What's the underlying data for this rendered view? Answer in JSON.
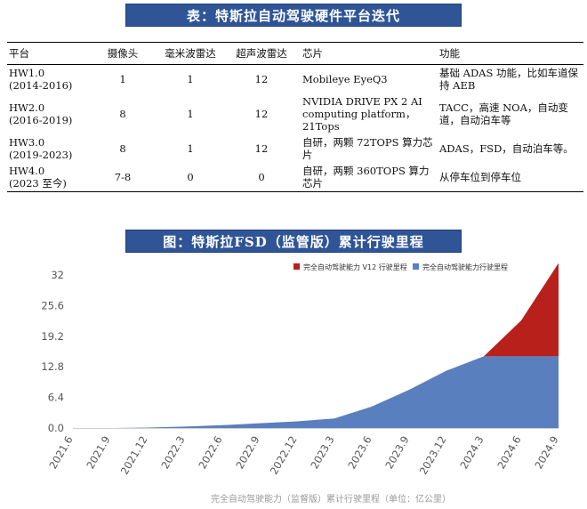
{
  "table_title": "表：特斯拉自动驾驶硬件平台迭代",
  "table": {
    "headers": [
      "平台",
      "摄像头",
      "毫米波雷达",
      "超声波雷达",
      "芯片",
      "功能"
    ],
    "rows": [
      {
        "gen": "HW1.0",
        "period": "(2014-2016)",
        "cameras": "1",
        "mmwave": "1",
        "ultrasonic": "12",
        "chip": "Mobileye EyeQ3",
        "features": "基础 ADAS 功能，比如车道保持 AEB"
      },
      {
        "gen": "HW2.0",
        "period": "(2016-2019)",
        "cameras": "8",
        "mmwave": "1",
        "ultrasonic": "12",
        "chip": "NVIDIA DRIVE PX 2 AI computing platform，21Tops",
        "features": "TACC，高速 NOA，自动变道，自动泊车等"
      },
      {
        "gen": "HW3.0",
        "period": "(2019-2023)",
        "cameras": "8",
        "mmwave": "1",
        "ultrasonic": "12",
        "chip": "自研，两颗 72TOPS 算力芯片",
        "features": "ADAS，FSD，自动泊车等。"
      },
      {
        "gen": "HW4.0",
        "period": "(2023 至今)",
        "cameras": "7-8",
        "mmwave": "0",
        "ultrasonic": "0",
        "chip": "自研，两颗 360TOPS 算力芯片",
        "features": "从停车位到停车位"
      }
    ]
  },
  "chart_title": "图：特斯拉FSD（监管版）累计行驶里程",
  "colors": {
    "banner": "#2f5597",
    "series_blue": "#5a7fbe",
    "series_red": "#b8201c"
  },
  "chart_data": {
    "type": "area",
    "stacked": true,
    "x": [
      "2021.6",
      "2021.9",
      "2021.12",
      "2022.3",
      "2022.6",
      "2022.9",
      "2022.12",
      "2023.3",
      "2023.6",
      "2023.9",
      "2023.12",
      "2024.3",
      "2024.6",
      "2024.9"
    ],
    "series": [
      {
        "name": "完全自动驾驶能力行驶里程",
        "values": [
          0,
          0,
          0.1,
          0.3,
          0.6,
          1.0,
          1.4,
          2.0,
          4.5,
          8.0,
          12.0,
          15.0,
          15.0,
          15.0
        ]
      },
      {
        "name": "完全自动驾驶能力 V12 行驶里程",
        "values": [
          0,
          0,
          0,
          0,
          0,
          0,
          0,
          0,
          0,
          0,
          0,
          0,
          7.5,
          19.5
        ]
      }
    ],
    "yticks": [
      "0.0",
      "6.4",
      "12.8",
      "19.2",
      "25.6",
      "32"
    ],
    "ylim": [
      0,
      35
    ],
    "xlabel": "完全自动驾驶能力（监督版）累计行驶里程（单位：亿公里）",
    "legend_position": "top-right",
    "grid": false
  }
}
